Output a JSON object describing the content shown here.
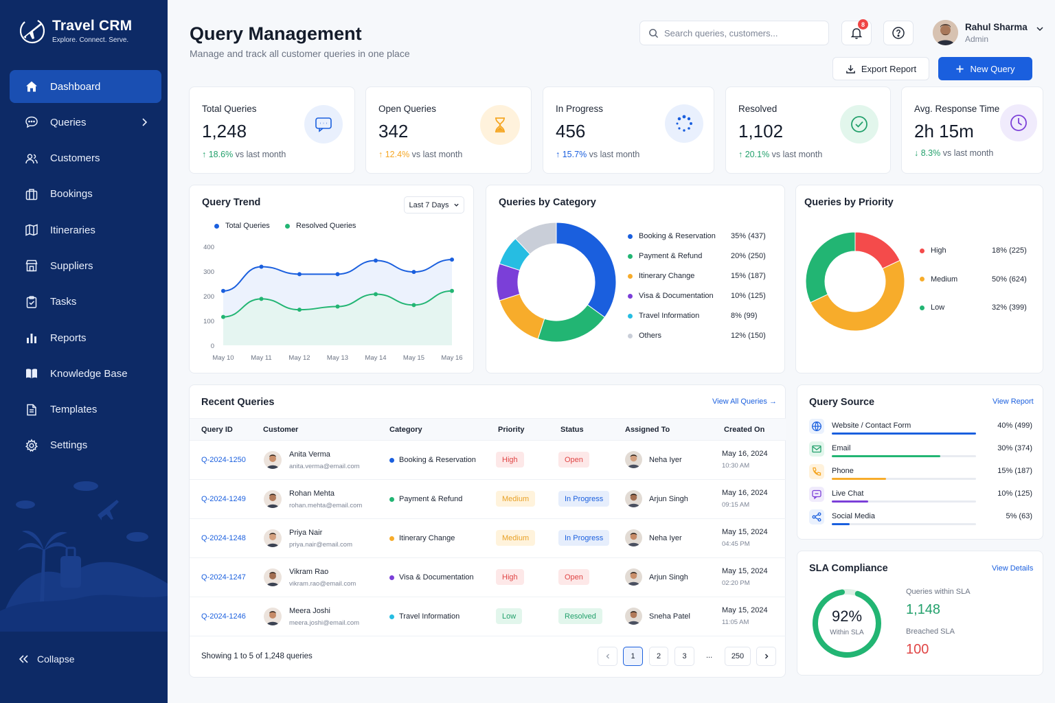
{
  "brand": {
    "title": "Travel CRM",
    "tagline": "Explore. Connect. Serve."
  },
  "sidebar": {
    "items": [
      {
        "label": "Dashboard",
        "icon": "home-icon",
        "active": true
      },
      {
        "label": "Queries",
        "icon": "chat-icon",
        "has_submenu": true
      },
      {
        "label": "Customers",
        "icon": "users-icon"
      },
      {
        "label": "Bookings",
        "icon": "briefcase-icon"
      },
      {
        "label": "Itineraries",
        "icon": "map-icon"
      },
      {
        "label": "Suppliers",
        "icon": "store-icon"
      },
      {
        "label": "Tasks",
        "icon": "clipboard-check-icon"
      },
      {
        "label": "Reports",
        "icon": "bar-chart-icon"
      },
      {
        "label": "Knowledge Base",
        "icon": "book-icon"
      },
      {
        "label": "Templates",
        "icon": "document-icon"
      },
      {
        "label": "Settings",
        "icon": "gear-icon"
      }
    ],
    "collapse_label": "Collapse"
  },
  "header": {
    "title": "Query Management",
    "subtitle": "Manage and track all customer queries in one place",
    "search_placeholder": "Search queries, customers...",
    "notification_count": "8",
    "user_name": "Rahul Sharma",
    "user_role": "Admin",
    "export_label": "Export Report",
    "new_label": "New Query"
  },
  "stats": [
    {
      "label": "Total Queries",
      "value": "1,248",
      "trend": "18.6%",
      "trend_dir": "up",
      "trend_text": "vs last month",
      "icon": "chat-icon"
    },
    {
      "label": "Open Queries",
      "value": "342",
      "trend": "12.4%",
      "trend_dir": "up",
      "trend_text": "vs last month",
      "icon": "hourglass-icon"
    },
    {
      "label": "In Progress",
      "value": "456",
      "trend": "15.7%",
      "trend_dir": "up",
      "trend_text": "vs last month",
      "icon": "spinner-icon"
    },
    {
      "label": "Resolved",
      "value": "1,102",
      "trend": "20.1%",
      "trend_dir": "up",
      "trend_text": "vs last month",
      "icon": "check-circle-icon"
    },
    {
      "label": "Avg. Response Time",
      "value": "2h 15m",
      "trend": "8.3%",
      "trend_dir": "down",
      "trend_text": "vs last month",
      "icon": "clock-icon"
    }
  ],
  "trend_chart": {
    "title": "Query Trend",
    "range_label": "Last 7 Days"
  },
  "category_chart": {
    "title": "Queries by Category"
  },
  "priority_chart": {
    "title": "Queries by Priority"
  },
  "chart_data": [
    {
      "type": "area",
      "title": "Query Trend",
      "categories": [
        "May 10",
        "May 11",
        "May 12",
        "May 13",
        "May 14",
        "May 15",
        "May 16"
      ],
      "ylim": [
        0,
        400
      ],
      "yticks": [
        0,
        100,
        200,
        300,
        400
      ],
      "grid": false,
      "legend": "top-left",
      "series": [
        {
          "name": "Total Queries",
          "color": "#1a5fde",
          "values": [
            220,
            318,
            288,
            288,
            343,
            297,
            347
          ]
        },
        {
          "name": "Resolved Queries",
          "color": "#22b573",
          "values": [
            115,
            188,
            144,
            157,
            207,
            163,
            220
          ]
        }
      ]
    },
    {
      "type": "pie",
      "title": "Queries by Category",
      "legend": "right",
      "slices": [
        {
          "name": "Booking & Reservation",
          "percent": "35%",
          "count": "(437)",
          "value": 35,
          "color": "#1a5fde"
        },
        {
          "name": "Payment & Refund",
          "percent": "20%",
          "count": "(250)",
          "value": 20,
          "color": "#22b573"
        },
        {
          "name": "Itinerary Change",
          "percent": "15%",
          "count": "(187)",
          "value": 15,
          "color": "#f7ac2b"
        },
        {
          "name": "Visa & Documentation",
          "percent": "10%",
          "count": "(125)",
          "value": 10,
          "color": "#7b3fd8"
        },
        {
          "name": "Travel Information",
          "percent": "8%",
          "count": "(99)",
          "value": 8,
          "color": "#26bde2"
        },
        {
          "name": "Others",
          "percent": "12%",
          "count": "(150)",
          "value": 12,
          "color": "#c9ced8"
        }
      ]
    },
    {
      "type": "pie",
      "title": "Queries by Priority",
      "legend": "right",
      "slices": [
        {
          "name": "High",
          "percent": "18%",
          "count": "(225)",
          "value": 18,
          "color": "#f44b4b"
        },
        {
          "name": "Medium",
          "percent": "50%",
          "count": "(624)",
          "value": 50,
          "color": "#f7ac2b"
        },
        {
          "name": "Low",
          "percent": "32%",
          "count": "(399)",
          "value": 32,
          "color": "#22b573"
        }
      ]
    }
  ],
  "recent": {
    "title": "Recent Queries",
    "view_all": "View All Queries",
    "columns": [
      "Query ID",
      "Customer",
      "Category",
      "Priority",
      "Status",
      "Assigned To",
      "Created On"
    ],
    "rows": [
      {
        "id": "Q-2024-1250",
        "name": "Anita Verma",
        "email": "anita.verma@email.com",
        "category": "Booking & Reservation",
        "cat_color": "#1a5fde",
        "priority": "High",
        "status": "Open",
        "assigned": "Neha Iyer",
        "date": "May 16, 2024",
        "time": "10:30 AM"
      },
      {
        "id": "Q-2024-1249",
        "name": "Rohan Mehta",
        "email": "rohan.mehta@email.com",
        "category": "Payment & Refund",
        "cat_color": "#22b573",
        "priority": "Medium",
        "status": "In Progress",
        "assigned": "Arjun Singh",
        "date": "May 16, 2024",
        "time": "09:15 AM"
      },
      {
        "id": "Q-2024-1248",
        "name": "Priya Nair",
        "email": "priya.nair@email.com",
        "category": "Itinerary Change",
        "cat_color": "#f7ac2b",
        "priority": "Medium",
        "status": "In Progress",
        "assigned": "Neha Iyer",
        "date": "May 15, 2024",
        "time": "04:45 PM"
      },
      {
        "id": "Q-2024-1247",
        "name": "Vikram Rao",
        "email": "vikram.rao@email.com",
        "category": "Visa & Documentation",
        "cat_color": "#7b3fd8",
        "priority": "High",
        "status": "Open",
        "assigned": "Arjun Singh",
        "date": "May 15, 2024",
        "time": "02:20 PM"
      },
      {
        "id": "Q-2024-1246",
        "name": "Meera Joshi",
        "email": "meera.joshi@email.com",
        "category": "Travel Information",
        "cat_color": "#26bde2",
        "priority": "Low",
        "status": "Resolved",
        "assigned": "Sneha Patel",
        "date": "May 15, 2024",
        "time": "11:05 AM"
      }
    ],
    "showing": "Showing 1 to 5 of 1,248 queries",
    "pages": [
      "1",
      "2",
      "3",
      "...",
      "250"
    ]
  },
  "source": {
    "title": "Query Source",
    "view": "View Report",
    "items": [
      {
        "label": "Website / Contact Form",
        "value": "40% (499)",
        "pct": 0.4,
        "color": "#1a5fde",
        "icon": "globe-icon"
      },
      {
        "label": "Email",
        "value": "30% (374)",
        "pct": 0.3,
        "color": "#22b573",
        "icon": "mail-icon"
      },
      {
        "label": "Phone",
        "value": "15% (187)",
        "pct": 0.15,
        "color": "#f7ac2b",
        "icon": "phone-icon"
      },
      {
        "label": "Live Chat",
        "value": "10% (125)",
        "pct": 0.1,
        "color": "#7b3fd8",
        "icon": "chat-bubble-icon"
      },
      {
        "label": "Social Media",
        "value": "5% (63)",
        "pct": 0.05,
        "color": "#1a5fde",
        "icon": "share-icon"
      }
    ]
  },
  "sla": {
    "title": "SLA Compliance",
    "view": "View Details",
    "percent": "92%",
    "percent_value": 0.92,
    "percent_label": "Within SLA",
    "within_label": "Queries within SLA",
    "within_value": "1,148",
    "breached_label": "Breached SLA",
    "breached_value": "100"
  }
}
